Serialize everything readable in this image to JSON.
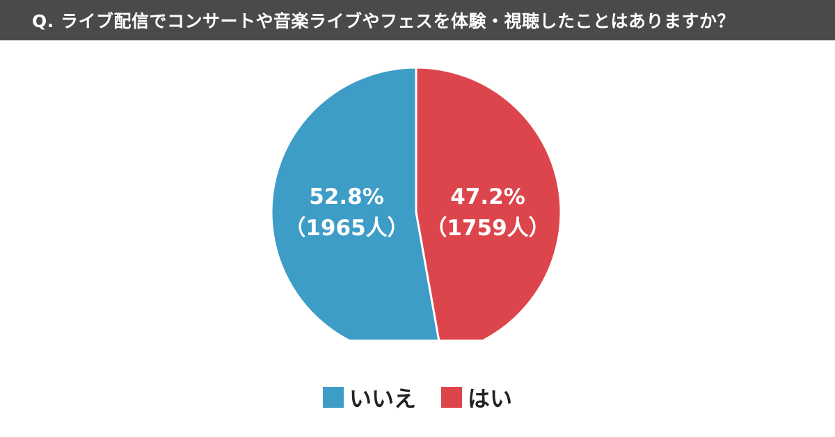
{
  "title": "Q. ライブ配信でコンサートや音楽ライブやフェスを体験・視聴したことはありますか？",
  "chart_data": {
    "type": "pie",
    "title": "Q. ライブ配信でコンサートや音楽ライブやフェスを体験・視聴したことはありますか？",
    "slices": [
      {
        "name": "いいえ",
        "percent": 52.8,
        "count": 1965,
        "color": "#3d9dc6",
        "percent_label": "52.8%",
        "count_label": "（1965人）"
      },
      {
        "name": "はい",
        "percent": 47.2,
        "count": 1759,
        "color": "#dc454c",
        "percent_label": "47.2%",
        "count_label": "（1759人）"
      }
    ],
    "start_angle_deg": 0,
    "direction": "counterclockwise-first-slice",
    "legend_position": "bottom"
  },
  "legend": [
    {
      "label": "いいえ",
      "color": "#3d9dc6"
    },
    {
      "label": "はい",
      "color": "#dc454c"
    }
  ]
}
